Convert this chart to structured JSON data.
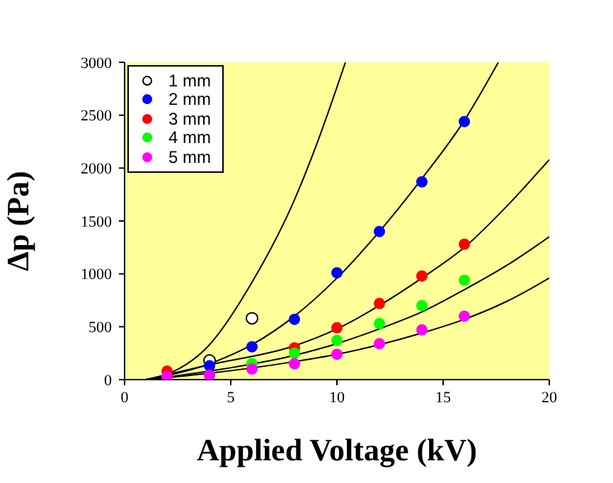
{
  "chart_data": {
    "type": "scatter",
    "xlabel": "Applied Voltage (kV)",
    "ylabel": "Δp (Pa)",
    "xlim": [
      0,
      20
    ],
    "xticks": [
      0,
      5,
      10,
      15,
      20
    ],
    "ylim": [
      0,
      3000
    ],
    "yticks": [
      0,
      500,
      1000,
      1500,
      2000,
      2500,
      3000
    ],
    "grid": false,
    "legend": "top left",
    "marker": "circle",
    "series": [
      {
        "name": "1 mm",
        "color": "#ffffff",
        "x": [
          4,
          6
        ],
        "values": [
          180,
          580
        ]
      },
      {
        "name": "2 mm",
        "color": "#0000ff",
        "x": [
          4,
          6,
          8,
          10,
          12,
          14,
          16
        ],
        "values": [
          130,
          310,
          570,
          1010,
          1400,
          1870,
          2440
        ]
      },
      {
        "name": "3 mm",
        "color": "#ff0000",
        "x": [
          2,
          8,
          10,
          12,
          14,
          16
        ],
        "values": [
          80,
          300,
          490,
          720,
          980,
          1280
        ]
      },
      {
        "name": "4 mm",
        "color": "#00ff00",
        "x": [
          6,
          8,
          10,
          12,
          14,
          16
        ],
        "values": [
          150,
          250,
          370,
          530,
          700,
          940
        ]
      },
      {
        "name": "5 mm",
        "color": "#ff00ff",
        "x": [
          2,
          4,
          6,
          8,
          10,
          12,
          14,
          16
        ],
        "values": [
          30,
          40,
          100,
          150,
          240,
          340,
          470,
          600
        ]
      },
      {
        "type": "line",
        "color": "#000000",
        "marker": "none",
        "x": [
          1,
          2,
          4,
          6,
          8,
          9,
          10.4
        ],
        "values": [
          0,
          50,
          330,
          920,
          1700,
          2200,
          3000
        ]
      },
      {
        "type": "line",
        "color": "#000000",
        "marker": "none",
        "x": [
          1,
          4,
          6,
          8,
          10,
          12,
          14,
          16,
          17.6
        ],
        "values": [
          0,
          150,
          330,
          600,
          960,
          1400,
          1900,
          2450,
          3000
        ]
      },
      {
        "type": "line",
        "color": "#000000",
        "marker": "none",
        "x": [
          1,
          4,
          8,
          10,
          12,
          14,
          16,
          18,
          20
        ],
        "values": [
          0,
          140,
          320,
          480,
          700,
          960,
          1250,
          1640,
          2080
        ]
      },
      {
        "type": "line",
        "color": "#000000",
        "marker": "none",
        "x": [
          1,
          4,
          8,
          10,
          12,
          14,
          16,
          18,
          20
        ],
        "values": [
          0,
          80,
          230,
          340,
          480,
          640,
          850,
          1080,
          1350
        ]
      },
      {
        "type": "line",
        "color": "#000000",
        "marker": "none",
        "x": [
          1,
          4,
          8,
          10,
          12,
          14,
          16,
          18,
          20
        ],
        "values": [
          0,
          60,
          170,
          240,
          330,
          440,
          570,
          740,
          960
        ]
      }
    ]
  }
}
